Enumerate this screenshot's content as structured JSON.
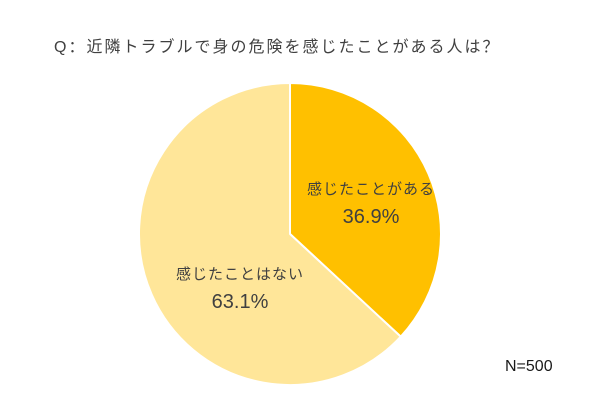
{
  "title": "Q：近隣トラブルで身の危険を感じたことがある人は？",
  "sample_size": "N=500",
  "chart_data": {
    "type": "pie",
    "title": "Q：近隣トラブルで身の危険を感じたことがある人は？",
    "labels": [
      "感じたことがある",
      "感じたことはない"
    ],
    "values": [
      36.9,
      63.1
    ],
    "value_labels": [
      "36.9%",
      "63.1%"
    ],
    "colors": [
      "#FFC000",
      "#FFE699"
    ],
    "start_angle": "12-oclock",
    "direction": "clockwise",
    "legend_position": "none",
    "label_placement": "inside",
    "annotation": "N=500",
    "text_color": "#404040"
  }
}
